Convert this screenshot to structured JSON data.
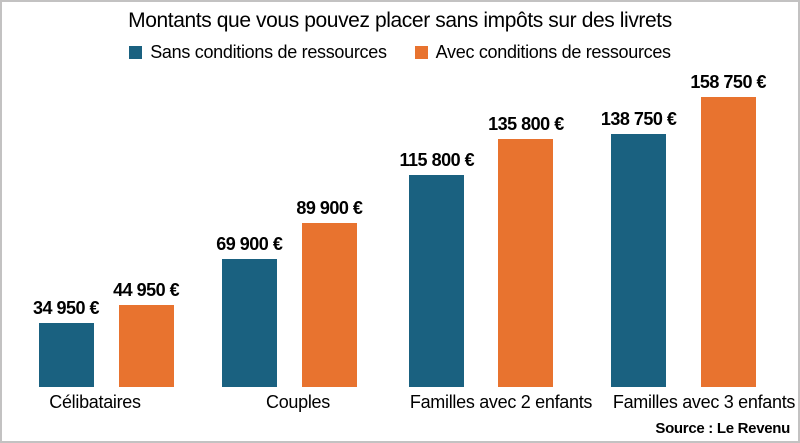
{
  "title": "Montants que vous pouvez placer sans impôts sur des livrets",
  "source": "Source : Le Revenu",
  "colors": {
    "series_1": "#1a6180",
    "series_2": "#e8732f",
    "frame_border": "#c3c2c2",
    "text": "#000000",
    "background": "#ffffff"
  },
  "legend": [
    {
      "label": "Sans conditions de ressources",
      "color": "#1a6180"
    },
    {
      "label": "Avec conditions de ressources",
      "color": "#e8732f"
    }
  ],
  "chart_data": {
    "type": "bar",
    "title": "Montants que vous pouvez placer sans impôts sur des livrets",
    "categories": [
      "Célibataires",
      "Couples",
      "Familles avec 2 enfants",
      "Familles avec 3 enfants"
    ],
    "series": [
      {
        "name": "Sans conditions de ressources",
        "color": "#1a6180",
        "values": [
          34950,
          69900,
          115800,
          138750
        ],
        "labels": [
          "34 950 €",
          "69 900 €",
          "115 800 €",
          "138 750 €"
        ]
      },
      {
        "name": "Avec conditions de ressources",
        "color": "#e8732f",
        "values": [
          44950,
          89900,
          135800,
          158750
        ],
        "labels": [
          "44 950 €",
          "89 900 €",
          "135 800 €",
          "158 750 €"
        ]
      }
    ],
    "xlabel": "",
    "ylabel": "",
    "ylim": [
      0,
      158750
    ],
    "grid": false,
    "axes_shown": false,
    "value_labels_shown": true,
    "legend_position": "top",
    "source_label": "Source : Le Revenu"
  }
}
